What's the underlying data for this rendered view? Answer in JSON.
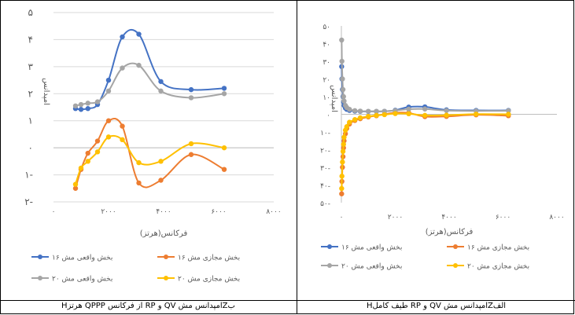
{
  "captions": {
    "left": "ب‌Zامپدانس مش QV و RP از فرکانس QPPP هرتزH",
    "right": "الف‌Zامپدانس مش QV و RP طیف کاملH"
  },
  "chart_data": [
    {
      "id": "left",
      "type": "line",
      "xlabel": "فرکانس(هرتز)",
      "ylabel": "امپدانس",
      "xlim": [
        0,
        8000
      ],
      "ylim": [
        -2,
        5
      ],
      "xticks": [
        0,
        2000,
        4000,
        6000,
        8000
      ],
      "xtick_labels": [
        "۰",
        "۲۰۰۰",
        "۴۰۰۰",
        "۶۰۰۰",
        "۸۰۰۰"
      ],
      "yticks": [
        5,
        4,
        3,
        2,
        1,
        0,
        -1,
        -2
      ],
      "ytick_labels": [
        "۵",
        "۴",
        "۳",
        "۲",
        "۱",
        "۰",
        "۱-",
        "۲-"
      ],
      "grid": true,
      "legend_position": "bottom",
      "series": [
        {
          "name": "بخش واقعی مش ۱۶",
          "color": "#4472C4",
          "points": [
            [
              800,
              1.45
            ],
            [
              1000,
              1.42
            ],
            [
              1250,
              1.45
            ],
            [
              1600,
              1.6
            ],
            [
              2000,
              2.5
            ],
            [
              2500,
              4.1
            ],
            [
              3100,
              4.2
            ],
            [
              3900,
              2.45
            ],
            [
              5000,
              2.15
            ],
            [
              6200,
              2.2
            ]
          ]
        },
        {
          "name": "بخش مجازی مش ۱۶",
          "color": "#ED7D31",
          "points": [
            [
              800,
              -1.5
            ],
            [
              1000,
              -0.8
            ],
            [
              1250,
              -0.2
            ],
            [
              1600,
              0.25
            ],
            [
              2000,
              1.0
            ],
            [
              2500,
              0.8
            ],
            [
              3100,
              -1.3
            ],
            [
              3900,
              -1.2
            ],
            [
              5000,
              -0.25
            ],
            [
              6200,
              -0.8
            ]
          ]
        },
        {
          "name": "بخش واقعی مش ۲۰",
          "color": "#A5A5A5",
          "points": [
            [
              800,
              1.55
            ],
            [
              1000,
              1.6
            ],
            [
              1250,
              1.65
            ],
            [
              1600,
              1.7
            ],
            [
              2000,
              2.1
            ],
            [
              2500,
              2.95
            ],
            [
              3100,
              3.05
            ],
            [
              3900,
              2.1
            ],
            [
              5000,
              1.85
            ],
            [
              6200,
              2.0
            ]
          ]
        },
        {
          "name": "بخش مجازی مش ۲۰",
          "color": "#FFC000",
          "points": [
            [
              800,
              -1.35
            ],
            [
              1000,
              -0.75
            ],
            [
              1250,
              -0.5
            ],
            [
              1600,
              -0.15
            ],
            [
              2000,
              0.4
            ],
            [
              2500,
              0.3
            ],
            [
              3100,
              -0.55
            ],
            [
              3900,
              -0.5
            ],
            [
              5000,
              0.15
            ],
            [
              6200,
              0.0
            ]
          ]
        }
      ]
    },
    {
      "id": "right",
      "type": "line",
      "xlabel": "فرکانس(هرتز)",
      "ylabel": "امپدانس",
      "xlim": [
        0,
        8000
      ],
      "ylim": [
        -50,
        50
      ],
      "xticks": [
        0,
        2000,
        4000,
        6000,
        8000
      ],
      "xtick_labels": [
        "۰",
        "۲۰۰۰",
        "۴۰۰۰",
        "۶۰۰۰",
        "۸۰۰۰"
      ],
      "yticks": [
        50,
        40,
        30,
        20,
        10,
        0,
        -10,
        -20,
        -30,
        -40,
        -50
      ],
      "ytick_labels": [
        "۵۰",
        "۴۰",
        "۳۰",
        "۲۰",
        "۱۰",
        "۰",
        "۱۰-",
        "۲۰-",
        "۳۰-",
        "۴۰-",
        "۵۰-"
      ],
      "grid": false,
      "legend_position": "bottom",
      "series": [
        {
          "name": "بخش واقعی مش ۱۶",
          "color": "#4472C4",
          "points": [
            [
              10,
              27
            ],
            [
              20,
              20
            ],
            [
              40,
              14
            ],
            [
              60,
              10
            ],
            [
              80,
              7
            ],
            [
              100,
              5
            ],
            [
              150,
              3.5
            ],
            [
              200,
              2.8
            ],
            [
              300,
              2.2
            ],
            [
              500,
              1.8
            ],
            [
              700,
              1.7
            ],
            [
              1000,
              1.6
            ],
            [
              1300,
              1.6
            ],
            [
              1600,
              1.7
            ],
            [
              2000,
              2.3
            ],
            [
              2500,
              4.1
            ],
            [
              3100,
              4.2
            ],
            [
              3900,
              2.5
            ],
            [
              5000,
              2.2
            ],
            [
              6200,
              2.2
            ]
          ]
        },
        {
          "name": "بخش مجازی مش ۱۶",
          "color": "#ED7D31",
          "points": [
            [
              10,
              -45
            ],
            [
              20,
              -38
            ],
            [
              40,
              -30
            ],
            [
              60,
              -24
            ],
            [
              80,
              -19
            ],
            [
              100,
              -15
            ],
            [
              150,
              -11
            ],
            [
              200,
              -8
            ],
            [
              300,
              -5.5
            ],
            [
              500,
              -3.5
            ],
            [
              700,
              -2.5
            ],
            [
              1000,
              -1.5
            ],
            [
              1300,
              -0.8
            ],
            [
              1600,
              0.0
            ],
            [
              2000,
              0.9
            ],
            [
              2500,
              0.8
            ],
            [
              3100,
              -1.3
            ],
            [
              3900,
              -1.2
            ],
            [
              5000,
              -0.3
            ],
            [
              6200,
              -0.8
            ]
          ]
        },
        {
          "name": "بخش واقعی مش ۲۰",
          "color": "#A5A5A5",
          "points": [
            [
              10,
              42
            ],
            [
              20,
              30
            ],
            [
              40,
              20
            ],
            [
              60,
              14
            ],
            [
              80,
              10
            ],
            [
              100,
              7.5
            ],
            [
              150,
              5
            ],
            [
              200,
              3.8
            ],
            [
              300,
              2.8
            ],
            [
              500,
              2.1
            ],
            [
              700,
              1.8
            ],
            [
              1000,
              1.7
            ],
            [
              1300,
              1.7
            ],
            [
              1600,
              1.7
            ],
            [
              2000,
              2.1
            ],
            [
              2500,
              2.9
            ],
            [
              3100,
              3.0
            ],
            [
              3900,
              2.1
            ],
            [
              5000,
              1.9
            ],
            [
              6200,
              2.0
            ]
          ]
        },
        {
          "name": "بخش مجازی مش ۲۰",
          "color": "#FFC000",
          "points": [
            [
              10,
              -42
            ],
            [
              20,
              -35
            ],
            [
              40,
              -27
            ],
            [
              60,
              -21
            ],
            [
              80,
              -17
            ],
            [
              100,
              -13
            ],
            [
              150,
              -9
            ],
            [
              200,
              -7
            ],
            [
              300,
              -4.5
            ],
            [
              500,
              -3
            ],
            [
              700,
              -2
            ],
            [
              1000,
              -1.2
            ],
            [
              1300,
              -0.6
            ],
            [
              1600,
              -0.2
            ],
            [
              2000,
              0.4
            ],
            [
              2500,
              0.3
            ],
            [
              3100,
              -0.6
            ],
            [
              3900,
              -0.5
            ],
            [
              5000,
              0.1
            ],
            [
              6200,
              0.0
            ]
          ]
        }
      ]
    }
  ]
}
